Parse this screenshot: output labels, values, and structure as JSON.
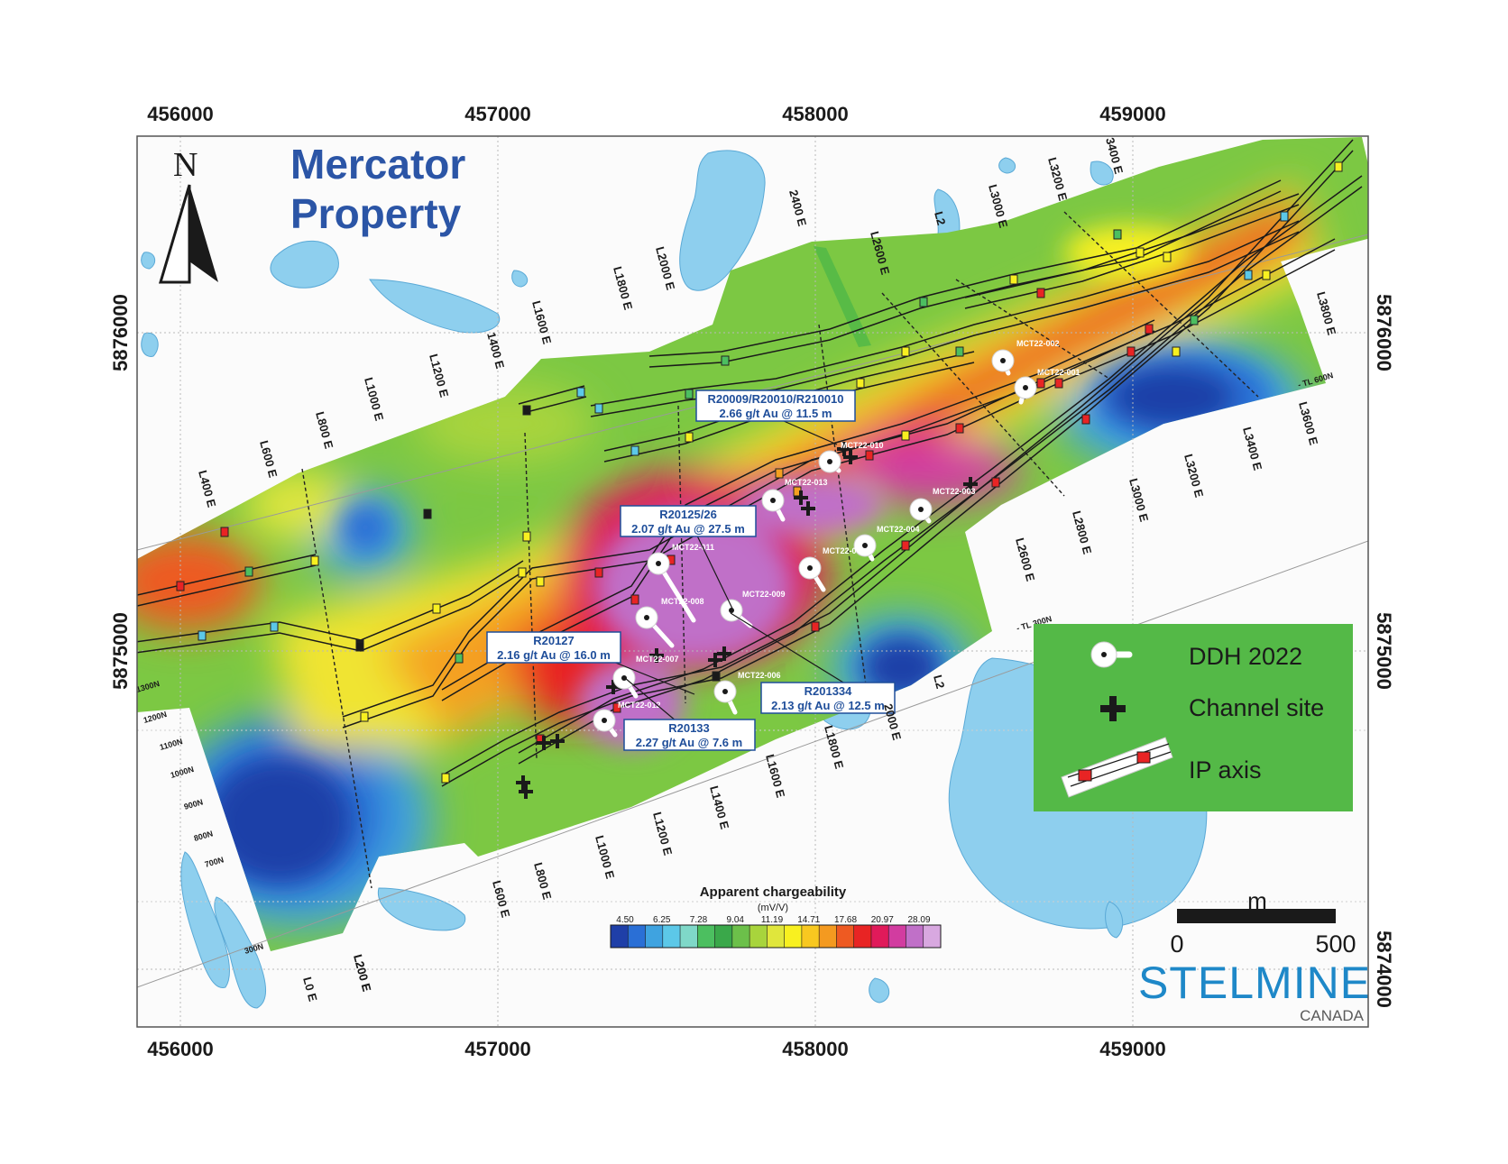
{
  "title": {
    "line1": "Mercator",
    "line2": "Property"
  },
  "north_label": "N",
  "x_ticks": [
    "456000",
    "457000",
    "458000",
    "459000"
  ],
  "y_ticks": [
    "5876000",
    "5875000",
    "5874000"
  ],
  "survey_lines": [
    "L0 E",
    "L200 E",
    "L400 E",
    "L600 E",
    "L800 E",
    "L1000 E",
    "L1200 E",
    "1400 E",
    "L1600 E",
    "L1800 E",
    "L2000 E",
    "2400 E",
    "L2600 E",
    "L2",
    "L3000 E",
    "L3200 E",
    "3400 E",
    "L3600 E",
    "L3800 E",
    "L3400 E",
    "L3200 E",
    "L3000 E",
    "L2800 E",
    "L2600 E",
    "L2",
    "L1800 E",
    "L1600 E",
    "L1400 E",
    "L1200 E",
    "L1000 E",
    "L800 E",
    "L600 E",
    "L200 E",
    "2000 E"
  ],
  "tie_lines": [
    "- TL 600N",
    "- TL 300N",
    "1200N",
    "1100N",
    "1000N",
    "900N",
    "800N",
    "700N",
    "300N",
    "1300N"
  ],
  "drill_holes": [
    "MCT22-002",
    "MCT22-001",
    "MCT22-010",
    "MCT22-013",
    "MCT22-003",
    "MCT22-004",
    "MCT22-0",
    "MCT22-011",
    "MCT22-009",
    "MCT22-008",
    "MCT22-007",
    "MCT22-006",
    "MCT22-012"
  ],
  "assays": [
    {
      "id": "R20009/R20010/R210010",
      "grade": "2.66 g/t Au @ 11.5 m"
    },
    {
      "id": "R20125/26",
      "grade": "2.07 g/t Au @ 27.5 m"
    },
    {
      "id": "R20127",
      "grade": "2.16 g/t Au @ 16.0 m"
    },
    {
      "id": "R201334",
      "grade": "2.13 g/t Au @ 12.5 m"
    },
    {
      "id": "R20133",
      "grade": "2.27 g/t Au @ 7.6 m"
    }
  ],
  "colorbar": {
    "title": "Apparent chargeability",
    "unit": "(mV/V)",
    "ticks": [
      "4.50",
      "6.25",
      "7.28",
      "9.04",
      "11.19",
      "14.71",
      "17.68",
      "20.97",
      "28.09"
    ],
    "colors": [
      "#1f3fa8",
      "#2a6fd6",
      "#3fa3e0",
      "#5cc8e8",
      "#7fd8c8",
      "#4cbf60",
      "#3aa84a",
      "#6cc04a",
      "#a8d43c",
      "#e0e63c",
      "#f8f020",
      "#f8c820",
      "#f49a20",
      "#ee5a22",
      "#e82424",
      "#e01a5a",
      "#d23ca0",
      "#c070c8",
      "#d8a8e0"
    ]
  },
  "legend": {
    "ddh": "DDH 2022",
    "channel": "Channel site",
    "ip": "IP axis",
    "bg": "#54b947"
  },
  "scale": {
    "unit": "m",
    "zero": "0",
    "max": "500"
  },
  "logo": {
    "main": "STELMINE",
    "sub": "CANADA"
  }
}
